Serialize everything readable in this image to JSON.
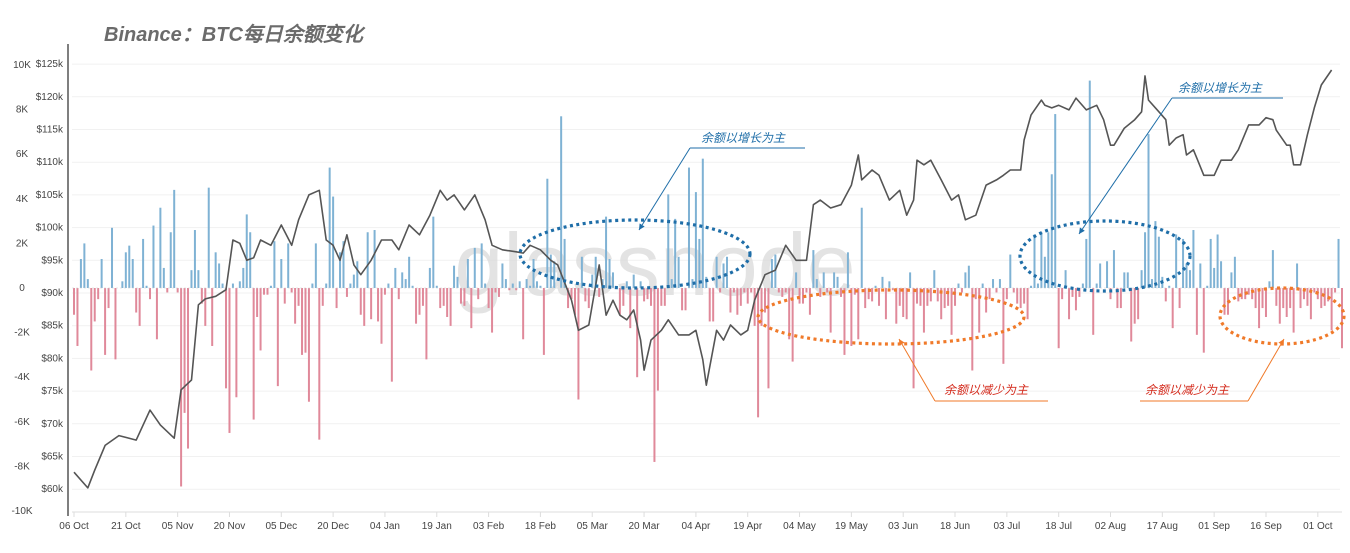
{
  "title": "Binance：BTC每日余额变化",
  "watermark": "glassnode",
  "colors": {
    "inflow": "#7fb2d4",
    "outflow": "#e0899a",
    "price": "#555555",
    "ann_blue": "#1f6ea8",
    "ann_orange": "#f07a2a",
    "ann_orange_text": "#d42a1c"
  },
  "annotations": {
    "growth_label_1": "余额以增长为主",
    "growth_label_2": "余额以增长为主",
    "decline_label_1": "余额以减少为主",
    "decline_label_2": "余额以减少为主"
  },
  "chart_data": {
    "type": "bar+line",
    "title": "Binance：BTC每日余额变化",
    "x_ticks": [
      "06 Oct",
      "21 Oct",
      "05 Nov",
      "20 Nov",
      "05 Dec",
      "20 Dec",
      "04 Jan",
      "19 Jan",
      "03 Feb",
      "18 Feb",
      "05 Mar",
      "20 Mar",
      "04 Apr",
      "19 Apr",
      "04 May",
      "19 May",
      "03 Jun",
      "18 Jun",
      "03 Jul",
      "18 Jul",
      "02 Aug",
      "17 Aug",
      "01 Sep",
      "16 Sep",
      "01 Oct"
    ],
    "x_tick_interval_days": 15,
    "flow_axis": {
      "ticks": [
        "10K",
        "8K",
        "6K",
        "4K",
        "2K",
        "0",
        "-2K",
        "-4K",
        "-6K",
        "-8K",
        "-10K"
      ],
      "range": [
        -10000,
        10000
      ],
      "unit": "BTC"
    },
    "price_axis": {
      "ticks": [
        "$125k",
        "$120k",
        "$115k",
        "$110k",
        "$105k",
        "$100k",
        "$95k",
        "$90k",
        "$85k",
        "$80k",
        "$75k",
        "$70k",
        "$65k",
        "$60k"
      ],
      "range": [
        60,
        125
      ],
      "unit": "k USD"
    },
    "series": [
      {
        "name": "Daily balance change (BTC)",
        "type": "bar",
        "day_start": 0,
        "values": [
          -1200,
          -2600,
          1300,
          2000,
          400,
          -3700,
          -1500,
          -500,
          1300,
          -3000,
          -900,
          2700,
          -3200,
          0,
          300,
          1600,
          1900,
          1300,
          -1100,
          -1700,
          2200,
          100,
          -500,
          2800,
          -2300,
          3600,
          900,
          -200,
          2500,
          4400,
          -200,
          -8900,
          -5600,
          -7200,
          800,
          2600,
          800,
          -700,
          -1700,
          4500,
          -2600,
          1600,
          1100,
          200,
          -4500,
          -6500,
          200,
          -4900,
          300,
          900,
          3300,
          2500,
          -5900,
          -1300,
          -2800,
          -300,
          -300,
          100,
          2100,
          -4400,
          1300,
          -700,
          2000,
          -200,
          -1600,
          -800,
          -3000,
          -2900,
          -5100,
          200,
          2000,
          -6800,
          -800,
          200,
          5400,
          4100,
          -900,
          1600,
          2100,
          -400,
          200,
          600,
          1200,
          -1200,
          -1700,
          2500,
          -1400,
          2600,
          -1500,
          -2500,
          -300,
          200,
          -4200,
          900,
          -500,
          700,
          400,
          1400,
          100,
          -1600,
          -1200,
          -800,
          -3200,
          900,
          3200,
          100,
          -900,
          -800,
          -1300,
          -1700,
          1000,
          500,
          -700,
          -800,
          1300,
          -1800,
          1800,
          -500,
          2000,
          200,
          -900,
          -2000,
          -200,
          -400,
          1100,
          400,
          -100,
          200,
          -100,
          300,
          -2300,
          400,
          100,
          1300,
          300,
          100,
          -3000,
          4900,
          1500,
          1200,
          0,
          7700,
          2200,
          -900,
          -500,
          -1200,
          -5000,
          1400,
          -600,
          -900,
          600,
          1400,
          -400,
          400,
          3200,
          1300,
          700,
          0,
          -1200,
          -800,
          300,
          -1800,
          600,
          -4000,
          300,
          -600,
          -500,
          -800,
          -7800,
          -4600,
          -800,
          -800,
          4200,
          400,
          3100,
          1400,
          -1000,
          -1000,
          5400,
          400,
          4300,
          2200,
          5800,
          500,
          -1500,
          -1500,
          1400,
          -200,
          1100,
          1400,
          -1100,
          -200,
          -1200,
          -800,
          -200,
          -700,
          -200,
          -1700,
          -5800,
          -1700,
          -1100,
          -4500,
          1300,
          1500,
          -200,
          -400,
          -200,
          -2300,
          -3300,
          700,
          -700,
          -700,
          -200,
          -1200,
          1700,
          400,
          -400,
          700,
          -200,
          -2000,
          700,
          500,
          -400,
          -3000,
          1600,
          -2600,
          -300,
          -2300,
          3600,
          -900,
          -500,
          -600,
          100,
          -800,
          500,
          -1400,
          300,
          -100,
          -1600,
          -800,
          -1300,
          -1400,
          700,
          -4500,
          -700,
          -800,
          -2000,
          -800,
          -600,
          800,
          -600,
          -1400,
          -900,
          -800,
          -2100,
          -800,
          200,
          -200,
          700,
          1000,
          -3700,
          -500,
          -2000,
          200,
          -1100,
          -500,
          400,
          -200,
          400,
          -3400,
          -500,
          1500,
          -200,
          -700,
          -900,
          -700,
          -1400,
          100,
          2400,
          200,
          2500,
          1400,
          2500,
          5100,
          7800,
          -2700,
          -500,
          800,
          -1400,
          -400,
          -1000,
          -400,
          200,
          2200,
          9300,
          -2100,
          200,
          1100,
          0,
          1200,
          -500,
          1700,
          -900,
          -900,
          700,
          700,
          -2400,
          -1600,
          -1400,
          800,
          2500,
          6900,
          400,
          3000,
          2300,
          500,
          -600,
          100,
          -1800,
          2400,
          -900,
          2200,
          1100,
          800,
          2600,
          -2100,
          1100,
          -2900,
          100,
          2200,
          900,
          2400,
          1200,
          -1200,
          -1200,
          700,
          1400,
          -600,
          -500,
          -500,
          -300,
          -500,
          -900,
          -1800,
          -900,
          -1300,
          300,
          1700,
          -800,
          -1600,
          -900,
          -1300,
          -900,
          -2000,
          1100,
          -900,
          -500,
          -800,
          -1400,
          -200,
          -500,
          -900,
          -800,
          -600,
          -1900,
          -200,
          2200,
          -2700
        ]
      },
      {
        "name": "BTC price (k USD)",
        "type": "line",
        "points": [
          [
            0,
            62.6
          ],
          [
            4,
            60.2
          ],
          [
            6,
            62.9
          ],
          [
            9,
            66.7
          ],
          [
            13,
            68.2
          ],
          [
            18,
            67.5
          ],
          [
            22,
            72.1
          ],
          [
            25,
            69.8
          ],
          [
            29,
            67.8
          ],
          [
            31,
            75.2
          ],
          [
            34,
            76.7
          ],
          [
            36,
            88.2
          ],
          [
            38,
            89.1
          ],
          [
            41,
            89.5
          ],
          [
            44,
            90.5
          ],
          [
            46,
            98.1
          ],
          [
            48,
            97.6
          ],
          [
            50,
            95.0
          ],
          [
            52,
            95.4
          ],
          [
            54,
            98.1
          ],
          [
            57,
            97.3
          ],
          [
            60,
            100.4
          ],
          [
            63,
            97.3
          ],
          [
            65,
            101.2
          ],
          [
            68,
            105.0
          ],
          [
            71,
            105.7
          ],
          [
            73,
            98.1
          ],
          [
            75,
            97.3
          ],
          [
            77,
            95.0
          ],
          [
            79,
            98.9
          ],
          [
            81,
            94.3
          ],
          [
            83,
            92.8
          ],
          [
            86,
            95.0
          ],
          [
            89,
            98.1
          ],
          [
            92,
            98.1
          ],
          [
            94,
            96.6
          ],
          [
            97,
            100.4
          ],
          [
            100,
            98.9
          ],
          [
            103,
            101.9
          ],
          [
            106,
            105.7
          ],
          [
            108,
            104.2
          ],
          [
            110,
            105.0
          ],
          [
            113,
            102.7
          ],
          [
            116,
            105.0
          ],
          [
            119,
            101.2
          ],
          [
            121,
            97.3
          ],
          [
            124,
            96.6
          ],
          [
            128,
            96.3
          ],
          [
            130,
            96.1
          ],
          [
            132,
            97.3
          ],
          [
            135,
            96.6
          ],
          [
            138,
            95.0
          ],
          [
            140,
            94.3
          ],
          [
            144,
            88.9
          ],
          [
            146,
            84.3
          ],
          [
            149,
            85.1
          ],
          [
            152,
            94.3
          ],
          [
            154,
            86.6
          ],
          [
            156,
            88.9
          ],
          [
            158,
            86.6
          ],
          [
            160,
            85.9
          ],
          [
            162,
            87.4
          ],
          [
            164,
            82.8
          ],
          [
            165,
            78.2
          ],
          [
            167,
            82.8
          ],
          [
            170,
            84.3
          ],
          [
            172,
            85.9
          ],
          [
            175,
            83.6
          ],
          [
            178,
            83.6
          ],
          [
            180,
            84.3
          ],
          [
            182,
            79.8
          ],
          [
            183,
            75.9
          ],
          [
            186,
            84.3
          ],
          [
            188,
            82.8
          ],
          [
            190,
            85.1
          ],
          [
            193,
            83.6
          ],
          [
            195,
            84.3
          ],
          [
            197,
            88.9
          ],
          [
            200,
            92.8
          ],
          [
            203,
            93.5
          ],
          [
            206,
            97.3
          ],
          [
            209,
            95.0
          ],
          [
            212,
            95.0
          ],
          [
            214,
            103.5
          ],
          [
            216,
            104.2
          ],
          [
            219,
            103.0
          ],
          [
            222,
            103.5
          ],
          [
            225,
            106.5
          ],
          [
            227,
            111.1
          ],
          [
            228,
            107.3
          ],
          [
            231,
            108.8
          ],
          [
            233,
            108.0
          ],
          [
            236,
            104.2
          ],
          [
            239,
            105.7
          ],
          [
            241,
            101.9
          ],
          [
            243,
            104.2
          ],
          [
            244,
            110.3
          ],
          [
            246,
            109.6
          ],
          [
            248,
            110.3
          ],
          [
            251,
            107.3
          ],
          [
            254,
            104.2
          ],
          [
            256,
            105.0
          ],
          [
            258,
            101.2
          ],
          [
            261,
            101.9
          ],
          [
            264,
            106.5
          ],
          [
            267,
            107.3
          ],
          [
            269,
            108.0
          ],
          [
            271,
            108.8
          ],
          [
            274,
            108.8
          ],
          [
            275,
            113.4
          ],
          [
            277,
            117.2
          ],
          [
            280,
            119.5
          ],
          [
            281,
            118.7
          ],
          [
            283,
            118.3
          ],
          [
            285,
            118.7
          ],
          [
            288,
            118.0
          ],
          [
            290,
            119.8
          ],
          [
            293,
            118.0
          ],
          [
            296,
            118.7
          ],
          [
            298,
            116.5
          ],
          [
            300,
            112.6
          ],
          [
            301,
            112.6
          ],
          [
            304,
            115.2
          ],
          [
            307,
            116.5
          ],
          [
            309,
            117.7
          ],
          [
            310,
            123.2
          ],
          [
            311,
            119.5
          ],
          [
            314,
            117.7
          ],
          [
            316,
            116.5
          ],
          [
            317,
            112.6
          ],
          [
            319,
            113.7
          ],
          [
            321,
            114.2
          ],
          [
            322,
            111.1
          ],
          [
            324,
            111.9
          ],
          [
            325,
            110.6
          ],
          [
            327,
            108.0
          ],
          [
            330,
            108.0
          ],
          [
            332,
            110.3
          ],
          [
            335,
            110.3
          ],
          [
            337,
            111.9
          ],
          [
            340,
            115.7
          ],
          [
            343,
            115.7
          ],
          [
            345,
            116.8
          ],
          [
            347,
            116.5
          ],
          [
            348,
            114.9
          ],
          [
            351,
            112.6
          ],
          [
            352,
            112.6
          ],
          [
            353,
            109.6
          ],
          [
            355,
            109.6
          ],
          [
            357,
            114.2
          ],
          [
            359,
            118.3
          ],
          [
            361,
            121.8
          ],
          [
            364,
            124.1
          ]
        ]
      }
    ],
    "grid": true,
    "legend": "none"
  }
}
